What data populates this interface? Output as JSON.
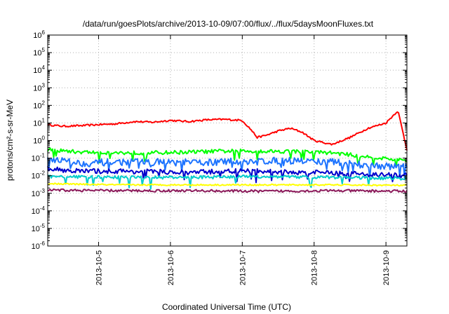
{
  "chart_data": {
    "type": "line",
    "title": "/data/run/goesPlots/archive/2013-10-09/07:00/flux/../flux/5daysMoonFluxes.txt",
    "xlabel": "Coordinated Universal Time (UTC)",
    "ylabel": "protons/cm²-s-sr-MeV",
    "yscale": "log",
    "ylim_exp": [
      -6,
      6
    ],
    "xlim": [
      "2013-10-04T07:00",
      "2013-10-09T07:00"
    ],
    "grid": true,
    "x_ticks": [
      "2013-10-5",
      "2013-10-6",
      "2013-10-7",
      "2013-10-8",
      "2013-10-9"
    ],
    "y_tick_exponents": [
      -6,
      -5,
      -4,
      -3,
      -2,
      -1,
      0,
      1,
      2,
      3,
      4,
      5,
      6
    ],
    "series": [
      {
        "color": "#ff0000",
        "x": [
          "2013-10-04T07:00",
          "2013-10-04T12:00",
          "2013-10-04T18:00",
          "2013-10-05T00:00",
          "2013-10-05T06:00",
          "2013-10-05T12:00",
          "2013-10-05T18:00",
          "2013-10-06T00:00",
          "2013-10-06T06:00",
          "2013-10-06T12:00",
          "2013-10-06T18:00",
          "2013-10-07T00:00",
          "2013-10-07T03:00",
          "2013-10-07T05:00",
          "2013-10-07T08:00",
          "2013-10-07T12:00",
          "2013-10-07T16:00",
          "2013-10-07T20:00",
          "2013-10-08T00:00",
          "2013-10-08T06:00",
          "2013-10-08T12:00",
          "2013-10-08T18:00",
          "2013-10-09T00:00",
          "2013-10-09T04:00",
          "2013-10-09T07:00"
        ],
        "y": [
          8,
          6.5,
          7,
          8,
          9,
          12,
          11,
          14,
          12,
          15,
          16,
          14,
          4,
          1.5,
          2,
          3.5,
          5,
          3,
          1,
          0.6,
          1.5,
          5,
          10,
          50,
          0.3
        ]
      },
      {
        "color": "#00ff00",
        "x": [
          "2013-10-04T07:00",
          "2013-10-04T18:00",
          "2013-10-05T06:00",
          "2013-10-05T18:00",
          "2013-10-06T06:00",
          "2013-10-06T18:00",
          "2013-10-07T06:00",
          "2013-10-07T18:00",
          "2013-10-08T06:00",
          "2013-10-08T18:00",
          "2013-10-09T07:00"
        ],
        "y": [
          0.3,
          0.22,
          0.2,
          0.2,
          0.22,
          0.25,
          0.25,
          0.24,
          0.2,
          0.12,
          0.07
        ]
      },
      {
        "color": "#1e74ff",
        "x": [
          "2013-10-04T07:00",
          "2013-10-04T18:00",
          "2013-10-05T06:00",
          "2013-10-05T18:00",
          "2013-10-06T06:00",
          "2013-10-06T18:00",
          "2013-10-07T06:00",
          "2013-10-07T18:00",
          "2013-10-08T06:00",
          "2013-10-08T18:00",
          "2013-10-09T07:00"
        ],
        "y": [
          0.1,
          0.05,
          0.06,
          0.06,
          0.055,
          0.06,
          0.07,
          0.07,
          0.06,
          0.04,
          0.03
        ]
      },
      {
        "color": "#0000cc",
        "x": [
          "2013-10-04T07:00",
          "2013-10-04T18:00",
          "2013-10-05T06:00",
          "2013-10-05T18:00",
          "2013-10-06T06:00",
          "2013-10-06T18:00",
          "2013-10-07T06:00",
          "2013-10-07T18:00",
          "2013-10-08T06:00",
          "2013-10-08T18:00",
          "2013-10-09T07:00"
        ],
        "y": [
          0.025,
          0.018,
          0.018,
          0.017,
          0.015,
          0.018,
          0.018,
          0.015,
          0.015,
          0.012,
          0.01
        ]
      },
      {
        "color": "#00cccc",
        "x": [
          "2013-10-04T07:00",
          "2013-10-05T07:00",
          "2013-10-06T07:00",
          "2013-10-07T07:00",
          "2013-10-08T07:00",
          "2013-10-09T07:00"
        ],
        "y": [
          0.009,
          0.008,
          0.008,
          0.009,
          0.008,
          0.007
        ]
      },
      {
        "color": "#ffff00",
        "x": [
          "2013-10-04T07:00",
          "2013-10-05T07:00",
          "2013-10-06T07:00",
          "2013-10-07T07:00",
          "2013-10-08T07:00",
          "2013-10-09T07:00"
        ],
        "y": [
          0.0035,
          0.003,
          0.003,
          0.003,
          0.003,
          0.0028
        ]
      },
      {
        "color": "#8b1a5a",
        "x": [
          "2013-10-04T07:00",
          "2013-10-05T07:00",
          "2013-10-06T07:00",
          "2013-10-07T07:00",
          "2013-10-08T07:00",
          "2013-10-09T07:00"
        ],
        "y": [
          0.0015,
          0.0014,
          0.0014,
          0.0013,
          0.0014,
          0.0013
        ]
      }
    ]
  }
}
